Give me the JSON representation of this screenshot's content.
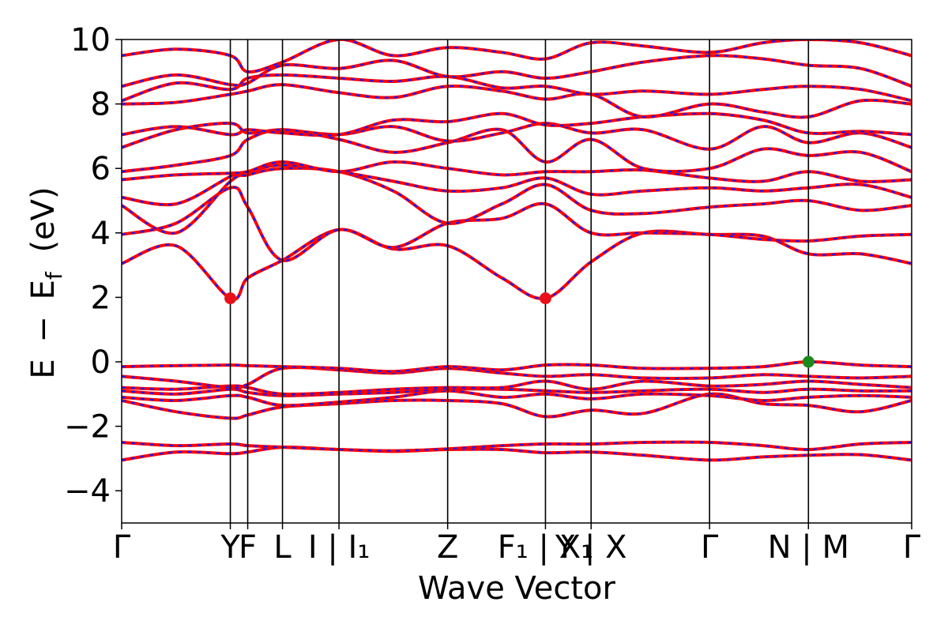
{
  "chart_data": {
    "type": "line",
    "title": "",
    "xlabel": "Wave Vector",
    "ylabel_parts": {
      "E": "E",
      "minus": "−",
      "Ef": "E",
      "Ef_sub": "f",
      "unit": "(eV)"
    },
    "ylim": [
      -5,
      10
    ],
    "yticks": [
      -4,
      -2,
      0,
      2,
      4,
      6,
      8,
      10
    ],
    "ytick_labels": [
      "−4",
      "−2",
      "0",
      "2",
      "4",
      "6",
      "8",
      "10"
    ],
    "kpath": [
      {
        "x": 0.0,
        "label": "Γ"
      },
      {
        "x": 1.0,
        "label": "Y"
      },
      {
        "x": 1.16,
        "label": "F"
      },
      {
        "x": 1.48,
        "label": "L"
      },
      {
        "x": 2.0,
        "label": "I | I₁"
      },
      {
        "x": 3.0,
        "label": "Z"
      },
      {
        "x": 3.9,
        "label": "F₁ | X₁"
      },
      {
        "x": 4.32,
        "label": "Y | X"
      },
      {
        "x": 5.41,
        "label": "Γ"
      },
      {
        "x": 6.32,
        "label": "N | M"
      },
      {
        "x": 7.27,
        "label": "Γ"
      }
    ],
    "xlim": [
      0,
      7.27
    ],
    "series": [
      {
        "values_x": [
          0,
          0.5,
          1.0,
          1.16,
          1.48,
          2.0,
          2.5,
          3.0,
          3.5,
          3.9,
          4.32,
          4.8,
          5.41,
          5.9,
          6.32,
          6.8,
          7.27
        ],
        "values_y": [
          -3.05,
          -2.8,
          -2.85,
          -2.8,
          -2.65,
          -2.72,
          -2.78,
          -2.72,
          -2.72,
          -2.82,
          -2.8,
          -2.9,
          -3.05,
          -2.95,
          -2.9,
          -2.88,
          -3.05
        ]
      },
      {
        "values_x": [
          0,
          0.5,
          1.0,
          1.16,
          1.48,
          2.0,
          2.5,
          3.0,
          3.5,
          3.9,
          4.32,
          4.8,
          5.41,
          5.9,
          6.32,
          6.8,
          7.27
        ],
        "values_y": [
          -2.5,
          -2.6,
          -2.55,
          -2.6,
          -2.65,
          -2.72,
          -2.76,
          -2.7,
          -2.6,
          -2.55,
          -2.55,
          -2.5,
          -2.5,
          -2.6,
          -2.72,
          -2.55,
          -2.5
        ]
      },
      {
        "values_x": [
          0,
          0.5,
          1.0,
          1.16,
          1.48,
          2.0,
          2.5,
          3.0,
          3.5,
          3.9,
          4.32,
          4.8,
          5.41,
          5.9,
          6.32,
          6.8,
          7.27
        ],
        "values_y": [
          -1.2,
          -1.55,
          -1.75,
          -1.65,
          -1.4,
          -1.3,
          -1.2,
          -1.2,
          -1.3,
          -1.7,
          -1.5,
          -1.6,
          -1.0,
          -1.3,
          -1.35,
          -1.55,
          -1.2
        ]
      },
      {
        "values_x": [
          0,
          0.5,
          1.0,
          1.16,
          1.48,
          2.0,
          2.5,
          3.0,
          3.5,
          3.9,
          4.32,
          4.8,
          5.41,
          5.9,
          6.32,
          6.8,
          7.27
        ],
        "values_y": [
          -1.1,
          -1.2,
          -1.05,
          -1.1,
          -1.35,
          -1.25,
          -1.1,
          -0.9,
          -1.1,
          -1.0,
          -1.15,
          -1.0,
          -1.05,
          -1.2,
          -1.1,
          -1.05,
          -1.1
        ]
      },
      {
        "values_x": [
          0,
          0.5,
          1.0,
          1.16,
          1.48,
          2.0,
          2.5,
          3.0,
          3.5,
          3.9,
          4.32,
          4.8,
          5.41,
          5.9,
          6.32,
          6.8,
          7.27
        ],
        "values_y": [
          -0.9,
          -1.0,
          -0.85,
          -0.95,
          -1.05,
          -1.0,
          -0.95,
          -0.85,
          -0.85,
          -0.9,
          -0.95,
          -0.9,
          -0.85,
          -0.95,
          -0.85,
          -0.9,
          -0.9
        ]
      },
      {
        "values_x": [
          0,
          0.5,
          1.0,
          1.16,
          1.48,
          2.0,
          2.5,
          3.0,
          3.5,
          3.9,
          4.32,
          4.8,
          5.41,
          5.9,
          6.32,
          6.8,
          7.27
        ],
        "values_y": [
          -0.8,
          -0.85,
          -0.75,
          -0.8,
          -1.0,
          -0.95,
          -0.85,
          -0.8,
          -0.8,
          -0.6,
          -0.85,
          -0.6,
          -0.75,
          -0.7,
          -0.6,
          -0.7,
          -0.8
        ]
      },
      {
        "values_x": [
          0,
          0.5,
          1.0,
          1.16,
          1.48,
          2.0,
          2.5,
          3.0,
          3.5,
          3.9,
          4.32,
          4.8,
          5.41,
          5.9,
          6.32,
          6.8,
          7.27
        ],
        "values_y": [
          -0.45,
          -0.6,
          -0.8,
          -0.7,
          -0.2,
          -0.25,
          -0.35,
          -0.2,
          -0.35,
          -0.45,
          -0.4,
          -0.5,
          -0.5,
          -0.4,
          -0.45,
          -0.5,
          -0.45
        ]
      },
      {
        "values_x": [
          0,
          0.5,
          1.0,
          1.16,
          1.48,
          2.0,
          2.5,
          3.0,
          3.5,
          3.9,
          4.32,
          4.8,
          5.41,
          5.9,
          6.32,
          6.8,
          7.27
        ],
        "values_y": [
          -0.15,
          -0.12,
          -0.1,
          -0.12,
          -0.15,
          -0.2,
          -0.3,
          -0.15,
          -0.25,
          -0.1,
          -0.1,
          -0.2,
          -0.2,
          -0.15,
          0.0,
          -0.1,
          -0.15
        ]
      },
      {
        "values_x": [
          0,
          0.5,
          1.0,
          1.16,
          1.48,
          2.0,
          2.5,
          3.0,
          3.5,
          3.9,
          4.32,
          4.8,
          5.41,
          5.9,
          6.32,
          6.8,
          7.27
        ],
        "values_y": [
          3.05,
          3.6,
          1.97,
          2.6,
          3.15,
          4.1,
          3.5,
          3.6,
          2.6,
          1.97,
          3.1,
          4.0,
          3.95,
          3.9,
          3.35,
          3.35,
          3.05
        ]
      },
      {
        "values_x": [
          0,
          0.5,
          1.0,
          1.16,
          1.48,
          2.0,
          2.5,
          3.0,
          3.5,
          3.9,
          4.32,
          4.8,
          5.41,
          5.9,
          6.32,
          6.8,
          7.27
        ],
        "values_y": [
          3.95,
          4.3,
          5.4,
          4.8,
          3.15,
          4.1,
          3.55,
          4.3,
          4.45,
          4.9,
          4.0,
          4.0,
          3.95,
          3.8,
          3.75,
          3.9,
          3.95
        ]
      },
      {
        "values_x": [
          0,
          0.5,
          1.0,
          1.16,
          1.48,
          2.0,
          2.5,
          3.0,
          3.5,
          3.9,
          4.32,
          4.8,
          5.41,
          5.9,
          6.32,
          6.8,
          7.27
        ],
        "values_y": [
          4.85,
          4.0,
          5.6,
          5.8,
          6.0,
          5.9,
          5.3,
          4.3,
          4.9,
          5.5,
          4.7,
          4.6,
          4.8,
          4.9,
          5.0,
          4.7,
          4.85
        ]
      },
      {
        "values_x": [
          0,
          0.5,
          1.0,
          1.16,
          1.48,
          2.0,
          2.5,
          3.0,
          3.5,
          3.9,
          4.32,
          4.8,
          5.41,
          5.9,
          6.32,
          6.8,
          7.27
        ],
        "values_y": [
          5.1,
          4.9,
          5.75,
          5.9,
          6.1,
          5.9,
          5.6,
          5.3,
          5.4,
          5.7,
          5.2,
          5.3,
          5.4,
          5.3,
          5.4,
          5.5,
          5.1
        ]
      },
      {
        "values_x": [
          0,
          0.5,
          1.0,
          1.16,
          1.48,
          2.0,
          2.5,
          3.0,
          3.5,
          3.9,
          4.32,
          4.8,
          5.41,
          5.9,
          6.32,
          6.8,
          7.27
        ],
        "values_y": [
          5.65,
          5.8,
          5.85,
          5.9,
          6.2,
          5.9,
          6.2,
          6.0,
          5.8,
          5.9,
          5.9,
          5.95,
          5.7,
          5.6,
          5.9,
          5.6,
          5.65
        ]
      },
      {
        "values_x": [
          0,
          0.5,
          1.0,
          1.16,
          1.48,
          2.0,
          2.5,
          3.0,
          3.5,
          3.9,
          4.32,
          4.8,
          5.41,
          5.9,
          6.32,
          6.8,
          7.27
        ],
        "values_y": [
          5.9,
          6.1,
          6.4,
          6.9,
          7.2,
          6.9,
          6.5,
          6.8,
          7.2,
          6.2,
          6.9,
          6.0,
          6.0,
          6.6,
          6.4,
          6.5,
          5.9
        ]
      },
      {
        "values_x": [
          0,
          0.5,
          1.0,
          1.16,
          1.48,
          2.0,
          2.5,
          3.0,
          3.5,
          3.9,
          4.32,
          4.8,
          5.41,
          5.9,
          6.32,
          6.8,
          7.27
        ],
        "values_y": [
          6.65,
          7.2,
          7.4,
          7.1,
          7.2,
          7.05,
          7.3,
          6.85,
          7.1,
          7.4,
          7.1,
          7.2,
          6.6,
          7.3,
          6.8,
          7.1,
          6.65
        ]
      },
      {
        "values_x": [
          0,
          0.5,
          1.0,
          1.16,
          1.48,
          2.0,
          2.5,
          3.0,
          3.5,
          3.9,
          4.32,
          4.8,
          5.41,
          5.9,
          6.32,
          6.8,
          7.27
        ],
        "values_y": [
          7.05,
          7.3,
          7.05,
          7.2,
          7.1,
          7.05,
          7.5,
          7.45,
          7.7,
          7.35,
          7.4,
          7.6,
          7.7,
          7.5,
          7.1,
          7.15,
          7.05
        ]
      },
      {
        "values_x": [
          0,
          0.5,
          1.0,
          1.16,
          1.48,
          2.0,
          2.5,
          3.0,
          3.5,
          3.9,
          4.32,
          4.8,
          5.41,
          5.9,
          6.32,
          6.8,
          7.27
        ],
        "values_y": [
          8.0,
          8.05,
          8.3,
          8.4,
          8.6,
          8.35,
          8.2,
          8.55,
          8.4,
          8.15,
          8.3,
          7.6,
          8.0,
          7.75,
          7.6,
          8.1,
          8.0
        ]
      },
      {
        "values_x": [
          0,
          0.5,
          1.0,
          1.16,
          1.48,
          2.0,
          2.5,
          3.0,
          3.5,
          3.9,
          4.32,
          4.8,
          5.41,
          5.9,
          6.32,
          6.8,
          7.27
        ],
        "values_y": [
          8.1,
          8.65,
          8.45,
          8.8,
          8.9,
          8.8,
          8.7,
          8.85,
          8.5,
          8.55,
          8.3,
          8.4,
          8.3,
          8.45,
          8.55,
          8.45,
          8.1
        ]
      },
      {
        "values_x": [
          0,
          0.5,
          1.0,
          1.16,
          1.48,
          2.0,
          2.5,
          3.0,
          3.5,
          3.9,
          4.32,
          4.8,
          5.41,
          5.9,
          6.32,
          6.8,
          7.27
        ],
        "values_y": [
          8.55,
          8.9,
          8.6,
          8.65,
          9.2,
          9.1,
          9.35,
          8.85,
          9.0,
          8.8,
          9.0,
          9.3,
          9.5,
          9.4,
          9.2,
          9.1,
          8.55
        ]
      },
      {
        "values_x": [
          0,
          0.5,
          1.0,
          1.16,
          1.48,
          2.0,
          2.5,
          3.0,
          3.5,
          3.9,
          4.32,
          4.8,
          5.41,
          5.9,
          6.32,
          6.8,
          7.27
        ],
        "values_y": [
          9.5,
          9.7,
          9.5,
          9.0,
          9.3,
          10.0,
          9.5,
          9.75,
          9.6,
          9.4,
          9.9,
          9.8,
          9.6,
          9.9,
          10.0,
          9.9,
          9.5
        ]
      }
    ],
    "markers": [
      {
        "x": 1.0,
        "y": 1.97,
        "color": "#e8101a"
      },
      {
        "x": 3.9,
        "y": 1.97,
        "color": "#e8101a"
      },
      {
        "x": 6.32,
        "y": 0.0,
        "color": "#1a8a1a"
      }
    ],
    "colors": {
      "band": "#ff0000",
      "band_dash": "#1a1aff",
      "axis": "#000000"
    },
    "grid": false
  }
}
